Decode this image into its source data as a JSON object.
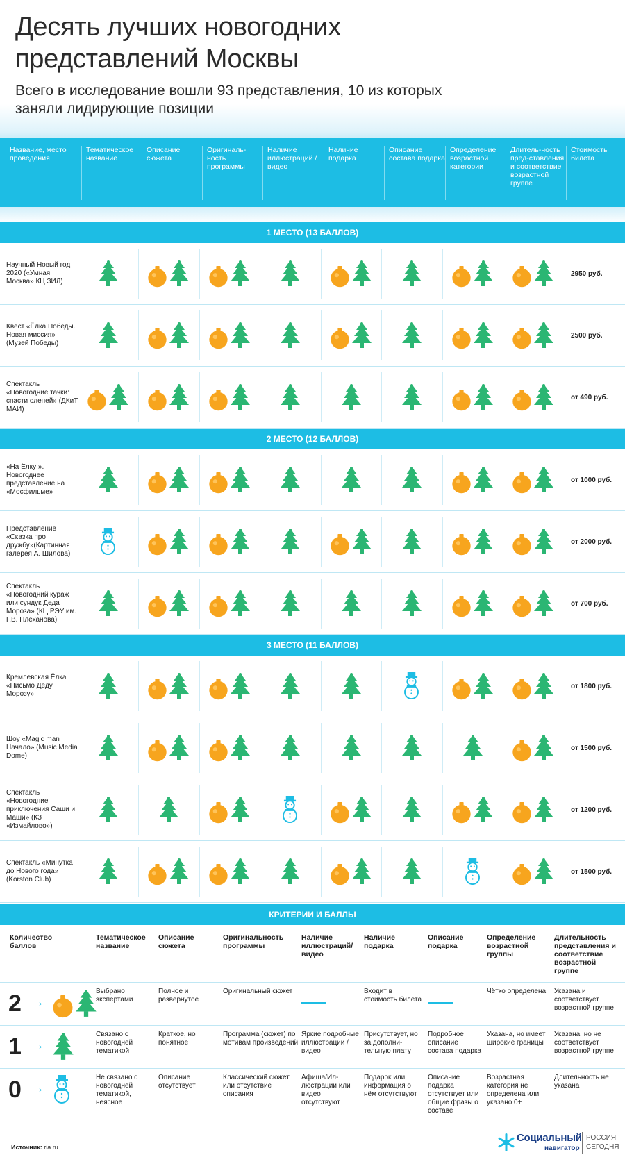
{
  "title": "Десять лучших новогодних представлений Москвы",
  "subtitle": "Всего в исследование вошли 93 представления, 10 из которых заняли лидирующие позиции",
  "columns": [
    "Название, место проведения",
    "Тематическое название",
    "Описание сюжета",
    "Оригиналь-ность программы",
    "Наличие иллюстраций /видео",
    "Наличие подарка",
    "Описание состава подарка",
    "Определение возрастной категории",
    "Длитель-ность пред-ставления и соответствие возрастной группе",
    "Стоимость билета"
  ],
  "icon_legend": {
    "2": "ornament-tree-icon",
    "1": "tree-icon",
    "0": "snowman-icon"
  },
  "colors": {
    "accent": "#1dbde4",
    "tree": "#2bb673",
    "ornament": "#f7a51e",
    "snowman": "#1dbde4"
  },
  "groups": [
    {
      "label": "1 МЕСТО (13 БАЛЛОВ)",
      "rows": [
        {
          "name": "Научный Новый год 2020 («Умная Москва» КЦ ЗИЛ)",
          "scores": [
            1,
            2,
            2,
            1,
            2,
            1,
            2,
            2
          ],
          "price": "2950 руб."
        },
        {
          "name": "Квест «Ёлка Победы. Новая миссия» (Музей Победы)",
          "scores": [
            1,
            2,
            2,
            1,
            2,
            1,
            2,
            2
          ],
          "price": "2500 руб."
        },
        {
          "name": "Спектакль «Новогодние тачки: спасти оленей» (ДКиТ МАИ)",
          "scores": [
            2,
            2,
            2,
            1,
            1,
            1,
            2,
            2
          ],
          "price": "от 490 руб."
        }
      ]
    },
    {
      "label": "2 МЕСТО (12 БАЛЛОВ)",
      "rows": [
        {
          "name": "«На Ёлку!». Новогоднее представление на «Мосфильме»",
          "scores": [
            1,
            2,
            2,
            1,
            1,
            1,
            2,
            2
          ],
          "price": "от 1000 руб."
        },
        {
          "name": "Представление «Сказка про дружбу»(Картинная галерея А. Шилова)",
          "scores": [
            0,
            2,
            2,
            1,
            2,
            1,
            2,
            2
          ],
          "price": "от 2000 руб."
        },
        {
          "name": "Спектакль «Новогодний кураж или сундук Деда Мороза» (КЦ РЭУ им. Г.В. Плеханова)",
          "scores": [
            1,
            2,
            2,
            1,
            1,
            1,
            2,
            2
          ],
          "price": "от 700 руб."
        }
      ]
    },
    {
      "label": "3 МЕСТО (11 БАЛЛОВ)",
      "rows": [
        {
          "name": "Кремлевская Ёлка «Письмо Деду Морозу»",
          "scores": [
            1,
            2,
            2,
            1,
            1,
            0,
            2,
            2
          ],
          "price": "от 1800 руб."
        },
        {
          "name": "Шоу «Magic man Начало» (Music Media Dome)",
          "scores": [
            1,
            2,
            2,
            1,
            1,
            1,
            1,
            2
          ],
          "price": "от 1500 руб."
        },
        {
          "name": "Спектакль «Новогодние приключения Саши и Маши» (КЗ «Измайлово»)",
          "scores": [
            1,
            1,
            2,
            0,
            2,
            1,
            2,
            2
          ],
          "price": "от 1200 руб."
        },
        {
          "name": "Спектакль «Минутка до Нового года» (Korston Club)",
          "scores": [
            1,
            2,
            2,
            1,
            2,
            1,
            0,
            2
          ],
          "price": "от 1500 руб."
        }
      ]
    }
  ],
  "criteria": {
    "label": "КРИТЕРИИ И БАЛЛЫ",
    "headers": [
      "Количество баллов",
      "Тематическое название",
      "Описание сюжета",
      "Оригинальность программы",
      "Наличие иллюстраций/ видео",
      "Наличие подарка",
      "Описание подарка",
      "Определение возрастной группы",
      "Длительность представления и соответствие возрастной группе"
    ],
    "rows": [
      {
        "score": "2",
        "cells": [
          "Выбрано экспертами",
          "Полное и развёрнутое",
          "Оригинальный сюжет",
          "",
          "Входит в стоимость билета",
          "",
          "Чётко определена",
          "Указана и соответствует возрастной группе"
        ]
      },
      {
        "score": "1",
        "cells": [
          "Связано с новогодней тематикой",
          "Краткое, но понятное",
          "Программа (сюжет) по мотивам произведений",
          "Яркие подробные иллюстрации /видео",
          "Присутствует, но за дополни-тельную плату",
          "Подробное описание состава подарка",
          "Указана, но имеет широкие границы",
          "Указана, но не соответствует возрастной группе"
        ]
      },
      {
        "score": "0",
        "cells": [
          "Не связано с новогодней тематикой, неясное",
          "Описание отсутствует",
          "Классический сюжет или отсутствие описания",
          "Афиша/Ил-люстрации или видео отсутствуют",
          "Подарок или информация о нём отсутствуют",
          "Описание подарка отсутствует или общие фразы о составе",
          "Возрастная категория не определена или указано 0+",
          "Длительность не указана"
        ]
      }
    ]
  },
  "source_label": "Источник:",
  "source_value": "ria.ru",
  "logo": {
    "name": "Социальный",
    "sub": "навигатор",
    "brand_line1": "РОССИЯ",
    "brand_line2": "СЕГОДНЯ"
  }
}
